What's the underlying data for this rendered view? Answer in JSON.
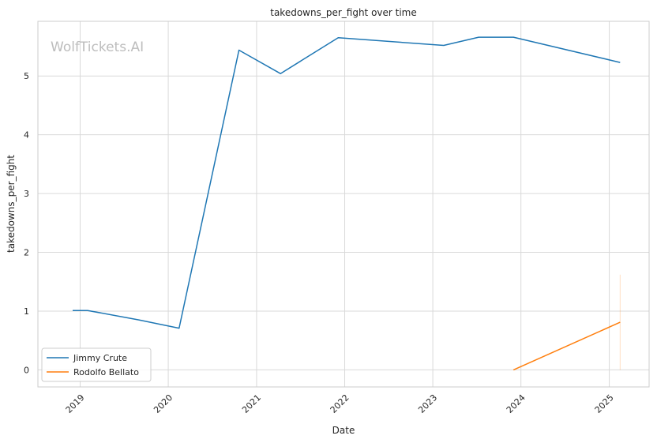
{
  "chart_data": {
    "type": "line",
    "title": "takedowns_per_fight over time",
    "xlabel": "Date",
    "ylabel": "takedowns_per_fight",
    "watermark": "WolfTickets.AI",
    "x_ticks": [
      "2019",
      "2020",
      "2021",
      "2022",
      "2023",
      "2024",
      "2025"
    ],
    "y_ticks": [
      "0",
      "1",
      "2",
      "3",
      "4",
      "5"
    ],
    "xlim": [
      "2018-07-10",
      "2025-06-15"
    ],
    "ylim": [
      -0.29,
      5.93
    ],
    "grid": true,
    "legend_position": "lower-left",
    "series": [
      {
        "name": "Jimmy Crute",
        "color": "#1f77b4",
        "points": [
          {
            "x": "2018-12-01",
            "y": 1.01
          },
          {
            "x": "2019-02-01",
            "y": 1.01
          },
          {
            "x": "2019-09-01",
            "y": 0.85
          },
          {
            "x": "2020-02-15",
            "y": 0.71
          },
          {
            "x": "2020-10-20",
            "y": 5.44
          },
          {
            "x": "2021-04-10",
            "y": 5.04
          },
          {
            "x": "2021-12-05",
            "y": 5.65
          },
          {
            "x": "2023-02-15",
            "y": 5.52
          },
          {
            "x": "2023-07-10",
            "y": 5.66
          },
          {
            "x": "2023-12-01",
            "y": 5.66
          },
          {
            "x": "2025-02-15",
            "y": 5.23
          }
        ]
      },
      {
        "name": "Rodolfo Bellato",
        "color": "#ff7f0e",
        "points": [
          {
            "x": "2023-12-01",
            "y": 0.0
          },
          {
            "x": "2025-02-15",
            "y": 0.81
          }
        ],
        "error_band": {
          "x": "2025-02-15",
          "low": 0.0,
          "high": 1.62
        }
      }
    ]
  }
}
